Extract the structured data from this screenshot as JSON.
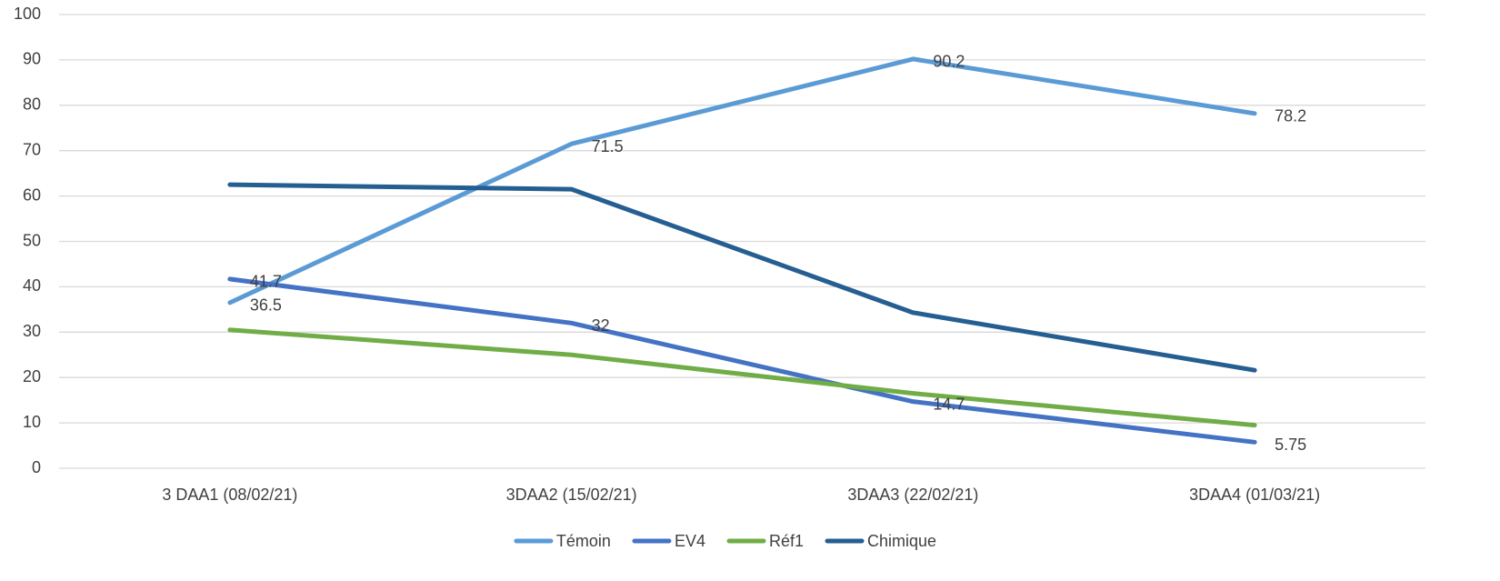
{
  "chart_data": {
    "type": "line",
    "categories": [
      "3 DAA1 (08/02/21)",
      "3DAA2 (15/02/21)",
      "3DAA3 (22/02/21)",
      "3DAA4 (01/03/21)"
    ],
    "series": [
      {
        "name": "Témoin",
        "color": "#5b9bd5",
        "values": [
          36.5,
          71.5,
          90.2,
          78.2
        ],
        "show_labels": true
      },
      {
        "name": "EV4",
        "color": "#4472c4",
        "values": [
          41.7,
          32,
          14.7,
          5.75
        ],
        "show_labels": true
      },
      {
        "name": "Réf1",
        "color": "#70ad47",
        "values": [
          30.5,
          25,
          16.5,
          9.5
        ],
        "show_labels": false
      },
      {
        "name": "Chimique",
        "color": "#255e91",
        "values": [
          62.5,
          61.5,
          34.3,
          21.6
        ],
        "show_labels": false
      }
    ],
    "ylim": [
      0,
      100
    ],
    "yticks": [
      0,
      10,
      20,
      30,
      40,
      50,
      60,
      70,
      80,
      90,
      100
    ],
    "grid": true,
    "legend": "bottom"
  }
}
